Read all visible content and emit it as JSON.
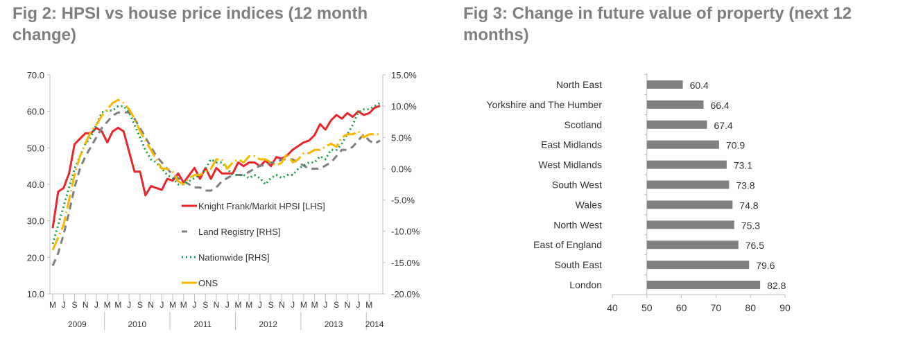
{
  "chart_data": [
    {
      "type": "line",
      "title": "Fig 2: HPSI vs house price indices (12 month change)",
      "x_start": "Mar 2009",
      "x_end": "Mar 2014",
      "month_ticks": [
        "M",
        "J",
        "S",
        "N",
        "J",
        "M",
        "M",
        "J",
        "S",
        "N",
        "J",
        "M",
        "M",
        "J",
        "S",
        "N",
        "J",
        "M",
        "M",
        "J",
        "S",
        "N",
        "J",
        "M",
        "M",
        "J",
        "S",
        "N",
        "J",
        "M"
      ],
      "years": [
        "2009",
        "2010",
        "2011",
        "2012",
        "2013",
        "2014"
      ],
      "y_left": {
        "ticks": [
          "70.0",
          "60.0",
          "50.0",
          "40.0",
          "30.0",
          "20.0",
          "10.0"
        ],
        "range": [
          10,
          70
        ]
      },
      "y_right": {
        "ticks": [
          "15.0%",
          "10.0%",
          "5.0%",
          "0.0%",
          "-5.0%",
          "-10.0%",
          "-15.0%",
          "-20.0%"
        ],
        "range": [
          -20,
          15
        ]
      },
      "legend_position": "center-bottom",
      "series": [
        {
          "name": "Knight Frank/Markit HPSI [LHS]",
          "axis": "left",
          "color": "#e8262b",
          "style": "solid",
          "values": [
            28,
            38,
            39,
            43,
            51,
            52.5,
            54,
            54,
            55.5,
            54.5,
            51.5,
            54.5,
            55.5,
            54.5,
            49,
            43.5,
            43.5,
            37,
            39.5,
            39,
            38.5,
            41.5,
            41,
            43,
            40.5,
            42.5,
            44.5,
            41.5,
            44.5,
            41.5,
            44.5,
            43,
            43,
            43,
            46,
            45,
            46,
            46,
            45,
            46.5,
            45,
            47.5,
            47,
            48,
            49.5,
            50.5,
            51.5,
            52,
            53.5,
            56.5,
            55,
            57.5,
            59,
            58,
            59.5,
            58.5,
            60,
            59,
            59.5,
            61,
            61.5
          ]
        },
        {
          "name": "Land Registry [RHS]",
          "axis": "right",
          "color": "#7f7f7f",
          "style": "dashed",
          "values": [
            -15.5,
            -13.5,
            -10.5,
            -7,
            -3,
            0,
            2,
            3.5,
            5,
            6.5,
            7.5,
            8.5,
            9,
            9,
            9,
            8,
            6.5,
            5,
            3.5,
            2,
            1,
            0,
            -1,
            -1.5,
            -2,
            -2.5,
            -3,
            -3,
            -3.5,
            -3.5,
            -3,
            -2,
            -1.5,
            -1,
            -1,
            -1,
            -0.5,
            0,
            0.5,
            0.5,
            1,
            1,
            1.5,
            1.5,
            1.5,
            1,
            0.5,
            0,
            0,
            0,
            0.5,
            1,
            2,
            3,
            3,
            3.5,
            4.5,
            5.5,
            4.5,
            4,
            4.5
          ]
        },
        {
          "name": "Nationwide [RHS]",
          "axis": "right",
          "color": "#1a9e4a",
          "style": "dotted",
          "values": [
            -12,
            -9,
            -6,
            -3,
            0,
            2,
            4,
            5,
            7,
            9,
            9.3,
            9.3,
            10,
            10,
            9,
            7,
            5,
            3,
            1.5,
            1,
            0,
            -1,
            -1.5,
            -2.5,
            -2.5,
            -2,
            -1.5,
            -1,
            0,
            1.5,
            1,
            1,
            0,
            -1,
            -1,
            -1,
            -1.5,
            -1,
            -1.5,
            -2.5,
            -1.5,
            -1,
            -1.5,
            -1,
            -1,
            0,
            0.5,
            1,
            1,
            2,
            1.5,
            3,
            3,
            4,
            5.5,
            7,
            9,
            9.5,
            9.5,
            10,
            10.5
          ]
        },
        {
          "name": "ONS",
          "axis": "right",
          "color": "#f5b800",
          "style": "longdash",
          "values": [
            -13,
            -11,
            -9,
            -5,
            -1,
            2,
            4,
            6,
            7,
            8.5,
            9.5,
            10.5,
            11,
            10.5,
            9.5,
            8,
            6,
            4.5,
            3,
            1.5,
            0,
            0,
            -0.5,
            -2,
            -2.5,
            -1.5,
            -1,
            -1,
            -0.5,
            0,
            1.5,
            1.5,
            0,
            1,
            1.5,
            1,
            2,
            2,
            1.5,
            1.5,
            1,
            0.5,
            1,
            2.5,
            1,
            1.5,
            2.5,
            2.5,
            3,
            3,
            3.5,
            4,
            3.5,
            5,
            5.5,
            5.5,
            6,
            5,
            5.5,
            5.5,
            5.5
          ]
        }
      ]
    },
    {
      "type": "bar",
      "orientation": "horizontal",
      "title": "Fig 3: Change in future value of property (next 12 months)",
      "categories": [
        "North East",
        "Yorkshire and The Humber",
        "Scotland",
        "East Midlands",
        "West Midlands",
        "South West",
        "Wales",
        "North West",
        "East of England",
        "South East",
        "London"
      ],
      "values": [
        60.4,
        66.4,
        67.4,
        70.9,
        73.1,
        73.8,
        74.8,
        75.3,
        76.5,
        79.6,
        82.8
      ],
      "value_labels": [
        "60.4",
        "66.4",
        "67.4",
        "70.9",
        "73.1",
        "73.8",
        "74.8",
        "75.3",
        "76.5",
        "79.6",
        "82.8"
      ],
      "xlim": [
        40,
        90
      ],
      "xticks": [
        "40",
        "50",
        "60",
        "70",
        "80",
        "90"
      ],
      "bar_color": "#808080"
    }
  ]
}
